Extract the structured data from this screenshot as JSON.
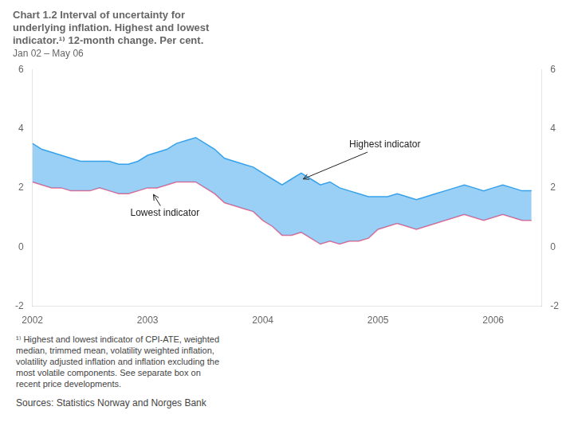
{
  "chart_data": {
    "type": "area",
    "title": [
      "Chart 1.2 Interval of uncertainty for",
      "underlying inflation. Highest and lowest",
      "indicator.¹⁾ 12-month change. Per cent."
    ],
    "subtitle": "Jan 02 – May 06",
    "x": [
      2002.0,
      2002.083,
      2002.167,
      2002.25,
      2002.333,
      2002.417,
      2002.5,
      2002.583,
      2002.667,
      2002.75,
      2002.833,
      2002.917,
      2003.0,
      2003.083,
      2003.167,
      2003.25,
      2003.333,
      2003.417,
      2003.5,
      2003.583,
      2003.667,
      2003.75,
      2003.833,
      2003.917,
      2004.0,
      2004.083,
      2004.167,
      2004.25,
      2004.333,
      2004.417,
      2004.5,
      2004.583,
      2004.667,
      2004.75,
      2004.833,
      2004.917,
      2005.0,
      2005.083,
      2005.167,
      2005.25,
      2005.333,
      2005.417,
      2005.5,
      2005.583,
      2005.667,
      2005.75,
      2005.833,
      2005.917,
      2006.0,
      2006.083,
      2006.167,
      2006.25,
      2006.333
    ],
    "series": [
      {
        "values": [
          3.5,
          3.3,
          3.2,
          3.1,
          3.0,
          2.9,
          2.9,
          2.9,
          2.9,
          2.8,
          2.8,
          2.9,
          3.1,
          3.2,
          3.3,
          3.5,
          3.6,
          3.7,
          3.5,
          3.3,
          3.0,
          2.9,
          2.8,
          2.7,
          2.5,
          2.3,
          2.1,
          2.3,
          2.5,
          2.3,
          2.1,
          2.2,
          2.0,
          1.9,
          1.8,
          1.7,
          1.7,
          1.7,
          1.8,
          1.7,
          1.6,
          1.7,
          1.8,
          1.9,
          2.0,
          2.1,
          2.0,
          1.9,
          2.0,
          2.1,
          2.0,
          1.9,
          1.9
        ]
      },
      {
        "values": [
          2.2,
          2.1,
          2.0,
          2.0,
          1.9,
          1.9,
          1.9,
          2.0,
          1.9,
          1.8,
          1.8,
          1.9,
          2.0,
          2.0,
          2.1,
          2.2,
          2.2,
          2.2,
          2.0,
          1.8,
          1.5,
          1.4,
          1.3,
          1.2,
          0.9,
          0.7,
          0.4,
          0.4,
          0.5,
          0.3,
          0.1,
          0.2,
          0.1,
          0.2,
          0.2,
          0.3,
          0.6,
          0.7,
          0.8,
          0.7,
          0.6,
          0.7,
          0.8,
          0.9,
          1.0,
          1.1,
          1.0,
          0.9,
          1.0,
          1.1,
          1.0,
          0.9,
          0.9
        ]
      }
    ],
    "xlim": [
      2002.0,
      2006.42
    ],
    "xticks": [
      2002,
      2003,
      2004,
      2005,
      2006
    ],
    "ylim": [
      -2,
      6
    ],
    "yticks": [
      -2,
      0,
      2,
      4,
      6
    ],
    "y2lim": [
      -2,
      6
    ],
    "y2ticks": [
      -2,
      0,
      2,
      4,
      6
    ],
    "grid": false,
    "annotations": [
      {
        "text": "Highest indicator",
        "x": 2004.75,
        "y": 3.45,
        "arrow_x": 2004.35,
        "arrow_y": 2.3
      },
      {
        "text": "Lowest indicator",
        "x": 2002.85,
        "y": 1.15,
        "arrow_x": 2003.05,
        "arrow_y": 1.78
      }
    ],
    "footnote": "¹⁾ Highest and lowest indicator of CPI-ATE, weighted\nmedian, trimmed mean, volatility weighted inflation,\nvolatility adjusted inflation and inflation excluding the\nmost volatile components. See separate box on\nrecent price developments.",
    "source": "Sources: Statistics Norway and Norges Bank"
  }
}
